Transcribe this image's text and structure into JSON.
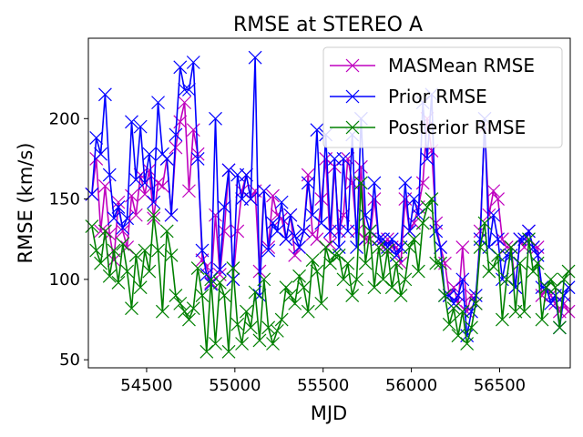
{
  "chart_data": {
    "type": "line",
    "title": "RMSE at STEREO A",
    "xlabel": "MJD",
    "ylabel": "RMSE (km/s)",
    "xlim": [
      54170,
      56900
    ],
    "ylim": [
      45,
      250
    ],
    "xticks": [
      54500,
      55000,
      55500,
      56000,
      56500
    ],
    "yticks": [
      50,
      100,
      150,
      200
    ],
    "xtick_labels": [
      "54500",
      "55000",
      "55500",
      "56000",
      "56500"
    ],
    "ytick_labels": [
      "50",
      "100",
      "150",
      "200"
    ],
    "legend_position": "upper right",
    "grid": false,
    "x": [
      54190,
      54215,
      54240,
      54265,
      54290,
      54315,
      54340,
      54365,
      54390,
      54415,
      54440,
      54465,
      54490,
      54515,
      54540,
      54565,
      54590,
      54615,
      54640,
      54665,
      54690,
      54715,
      54740,
      54765,
      54790,
      54815,
      54840,
      54865,
      54890,
      54915,
      54940,
      54965,
      54990,
      55015,
      55040,
      55065,
      55090,
      55115,
      55140,
      55165,
      55190,
      55215,
      55240,
      55265,
      55290,
      55315,
      55340,
      55365,
      55390,
      55415,
      55440,
      55465,
      55490,
      55515,
      55540,
      55565,
      55590,
      55615,
      55640,
      55665,
      55690,
      55715,
      55740,
      55765,
      55790,
      55815,
      55840,
      55865,
      55890,
      55915,
      55940,
      55965,
      55990,
      56015,
      56040,
      56065,
      56090,
      56115,
      56140,
      56165,
      56190,
      56215,
      56240,
      56265,
      56290,
      56315,
      56340,
      56365,
      56390,
      56415,
      56440,
      56465,
      56490,
      56515,
      56540,
      56565,
      56590,
      56615,
      56640,
      56665,
      56690,
      56715,
      56740,
      56765,
      56790,
      56815,
      56840,
      56865,
      56890
    ],
    "series": [
      {
        "name": "MASMean RMSE",
        "color": "#bf00bf",
        "values": [
          153,
          175,
          130,
          158,
          128,
          112,
          148,
          130,
          120,
          152,
          140,
          165,
          153,
          168,
          138,
          160,
          158,
          175,
          140,
          182,
          198,
          210,
          155,
          193,
          178,
          112,
          108,
          98,
          140,
          103,
          130,
          168,
          100,
          130,
          155,
          165,
          150,
          155,
          105,
          155,
          120,
          152,
          140,
          138,
          125,
          140,
          115,
          120,
          130,
          165,
          128,
          125,
          150,
          175,
          122,
          170,
          130,
          140,
          175,
          160,
          130,
          170,
          125,
          125,
          150,
          125,
          120,
          125,
          120,
          120,
          110,
          150,
          130,
          135,
          145,
          160,
          200,
          180,
          135,
          120,
          110,
          90,
          95,
          85,
          120,
          80,
          90,
          85,
          130,
          195,
          140,
          155,
          150,
          125,
          120,
          120,
          95,
          125,
          120,
          130,
          120,
          120,
          90,
          95,
          90,
          85,
          80,
          85,
          80
        ]
      },
      {
        "name": "Prior RMSE",
        "color": "#0000ff",
        "values": [
          153,
          188,
          178,
          215,
          165,
          138,
          145,
          132,
          138,
          198,
          162,
          195,
          160,
          178,
          148,
          210,
          178,
          175,
          140,
          190,
          232,
          218,
          218,
          235,
          175,
          118,
          103,
          97,
          200,
          106,
          145,
          168,
          100,
          165,
          150,
          165,
          150,
          238,
          90,
          155,
          118,
          135,
          130,
          148,
          125,
          140,
          127,
          120,
          130,
          160,
          140,
          193,
          135,
          190,
          130,
          175,
          120,
          175,
          130,
          190,
          120,
          200,
          140,
          130,
          160,
          125,
          125,
          120,
          125,
          115,
          120,
          160,
          130,
          150,
          140,
          210,
          175,
          215,
          130,
          120,
          90,
          90,
          85,
          90,
          100,
          65,
          80,
          90,
          125,
          200,
          120,
          140,
          125,
          100,
          115,
          115,
          95,
          125,
          125,
          130,
          120,
          115,
          95,
          95,
          85,
          90,
          70,
          90,
          95
        ]
      },
      {
        "name": "Posterior RMSE",
        "color": "#008000",
        "values": [
          133,
          118,
          110,
          130,
          102,
          118,
          98,
          122,
          105,
          82,
          115,
          95,
          118,
          105,
          140,
          118,
          80,
          130,
          115,
          90,
          85,
          80,
          75,
          82,
          107,
          90,
          55,
          100,
          60,
          98,
          90,
          55,
          107,
          72,
          60,
          80,
          70,
          92,
          62,
          100,
          70,
          60,
          68,
          75,
          95,
          90,
          85,
          102,
          95,
          80,
          112,
          105,
          85,
          120,
          110,
          115,
          115,
          100,
          110,
          90,
          100,
          160,
          110,
          130,
          95,
          120,
          100,
          118,
          95,
          110,
          90,
          100,
          120,
          125,
          105,
          135,
          145,
          150,
          110,
          110,
          90,
          72,
          82,
          65,
          80,
          60,
          70,
          85,
          120,
          135,
          105,
          108,
          115,
          75,
          100,
          120,
          80,
          110,
          80,
          125,
          105,
          110,
          75,
          95,
          100,
          95,
          70,
          100,
          105
        ]
      }
    ]
  }
}
